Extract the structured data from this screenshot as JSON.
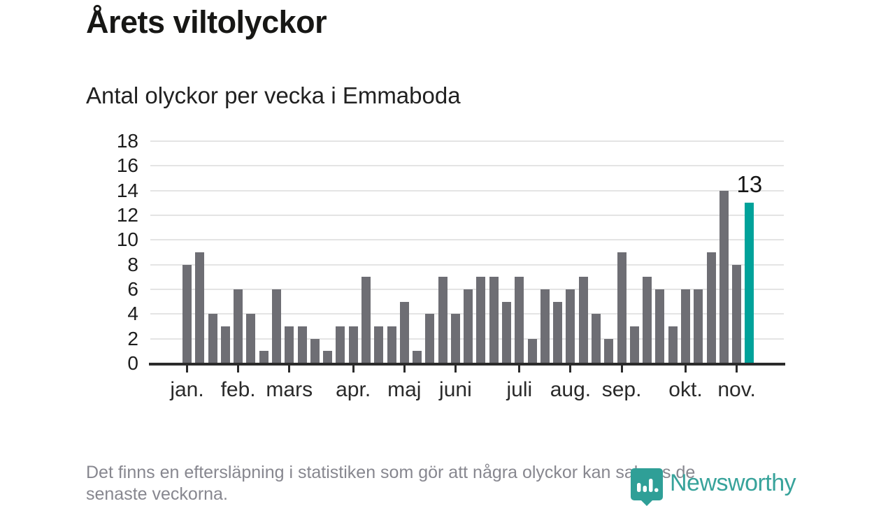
{
  "footnote": {
    "lines": [
      "Det finns en eftersläpning i statistiken som gör att några olyckor kan saknas de",
      "senaste veckorna."
    ]
  },
  "logo": {
    "text": "Newsworthy"
  },
  "chart_data": {
    "type": "bar",
    "title": "Årets viltolyckor",
    "subtitle": "Antal olyckor per vecka i Emmaboda",
    "values": [
      8,
      9,
      4,
      3,
      6,
      4,
      1,
      6,
      3,
      3,
      2,
      1,
      3,
      3,
      7,
      3,
      3,
      5,
      1,
      4,
      7,
      4,
      6,
      7,
      7,
      5,
      7,
      2,
      6,
      5,
      6,
      7,
      4,
      2,
      9,
      3,
      7,
      6,
      3,
      6,
      6,
      9,
      14,
      8,
      13
    ],
    "highlight": {
      "index": 44,
      "label": "13",
      "color": "#00a29a"
    },
    "bar_color": "#6e6e74",
    "y_ticks": [
      0,
      2,
      4,
      6,
      8,
      10,
      12,
      14,
      16,
      18
    ],
    "ylim": [
      0,
      18
    ],
    "grid": true,
    "legend": "none",
    "month_ticks": [
      {
        "label": "jan.",
        "week_index": 0
      },
      {
        "label": "feb.",
        "week_index": 4
      },
      {
        "label": "mars",
        "week_index": 8
      },
      {
        "label": "apr.",
        "week_index": 13
      },
      {
        "label": "maj",
        "week_index": 17
      },
      {
        "label": "juni",
        "week_index": 21
      },
      {
        "label": "juli",
        "week_index": 26
      },
      {
        "label": "aug.",
        "week_index": 30
      },
      {
        "label": "sep.",
        "week_index": 34
      },
      {
        "label": "okt.",
        "week_index": 39
      },
      {
        "label": "nov.",
        "week_index": 43
      }
    ]
  }
}
